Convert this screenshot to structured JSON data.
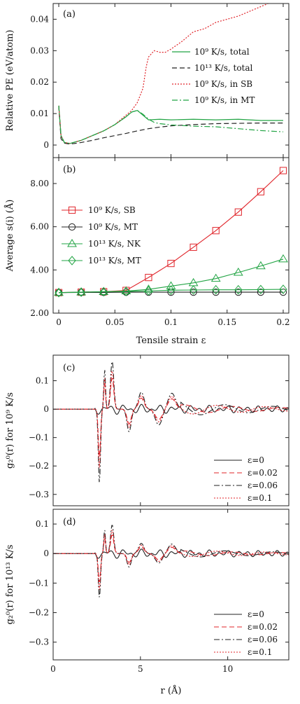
{
  "chart_data": [
    {
      "panel_label": "(a)",
      "type": "line",
      "ylabel": "Relative PE (eV/atom)",
      "xlim": [
        -0.005,
        0.205
      ],
      "ylim": [
        -0.004,
        0.045
      ],
      "yticks": [
        0,
        0.01,
        0.02,
        0.03,
        0.04
      ],
      "yticklabels": [
        "0",
        "0.01",
        "0.02",
        "0.03",
        "0.04"
      ],
      "legend_loc": "right",
      "series": [
        {
          "name": "10⁹ K/s, total",
          "color": "#22a444",
          "dash": "",
          "x": [
            0,
            0.002,
            0.005,
            0.01,
            0.02,
            0.03,
            0.04,
            0.05,
            0.06,
            0.065,
            0.07,
            0.075,
            0.08,
            0.09,
            0.1,
            0.12,
            0.14,
            0.16,
            0.18,
            0.2
          ],
          "y": [
            0.0125,
            0.003,
            0.0008,
            0.0005,
            0.0015,
            0.003,
            0.0045,
            0.0065,
            0.009,
            0.0105,
            0.011,
            0.0095,
            0.008,
            0.0082,
            0.008,
            0.0082,
            0.008,
            0.0082,
            0.0078,
            0.0078
          ]
        },
        {
          "name": "10¹³ K/s, total",
          "color": "#222222",
          "dash": "7,4",
          "x": [
            0,
            0.002,
            0.005,
            0.01,
            0.02,
            0.03,
            0.04,
            0.05,
            0.06,
            0.07,
            0.08,
            0.09,
            0.1,
            0.12,
            0.14,
            0.16,
            0.18,
            0.2
          ],
          "y": [
            0.0125,
            0.002,
            0.0006,
            0.0003,
            0.0008,
            0.0015,
            0.0023,
            0.003,
            0.0037,
            0.0045,
            0.0052,
            0.0057,
            0.0061,
            0.0065,
            0.0068,
            0.0069,
            0.007,
            0.007
          ]
        },
        {
          "name": "10⁹ K/s, in SB",
          "color": "#e0242a",
          "dash": "2,2",
          "x": [
            0,
            0.002,
            0.005,
            0.01,
            0.02,
            0.03,
            0.04,
            0.05,
            0.06,
            0.065,
            0.07,
            0.075,
            0.078,
            0.08,
            0.085,
            0.09,
            0.095,
            0.1,
            0.11,
            0.12,
            0.13,
            0.14,
            0.15,
            0.16,
            0.17,
            0.18,
            0.19
          ],
          "y": [
            0.0125,
            0.003,
            0.0008,
            0.0005,
            0.0015,
            0.003,
            0.0045,
            0.0065,
            0.0095,
            0.011,
            0.0135,
            0.018,
            0.025,
            0.028,
            0.03,
            0.0295,
            0.0295,
            0.0305,
            0.033,
            0.036,
            0.037,
            0.039,
            0.04,
            0.041,
            0.0425,
            0.044,
            0.0455
          ]
        },
        {
          "name": "10⁹ K/s, in MT",
          "color": "#22a444",
          "dash": "8,3,2,3",
          "x": [
            0,
            0.002,
            0.005,
            0.01,
            0.02,
            0.03,
            0.04,
            0.05,
            0.06,
            0.065,
            0.07,
            0.075,
            0.08,
            0.085,
            0.09,
            0.1,
            0.12,
            0.14,
            0.16,
            0.18,
            0.2
          ],
          "y": [
            0.0125,
            0.003,
            0.0008,
            0.0005,
            0.0015,
            0.003,
            0.0045,
            0.0065,
            0.009,
            0.0105,
            0.011,
            0.0098,
            0.0082,
            0.0072,
            0.0068,
            0.0064,
            0.006,
            0.0058,
            0.0052,
            0.0046,
            0.0042
          ]
        }
      ]
    },
    {
      "panel_label": "(b)",
      "type": "line",
      "xlabel": "Tensile strain ε",
      "ylabel": "Average s(i) (Å)",
      "xlim": [
        -0.005,
        0.205
      ],
      "ylim": [
        2.0,
        9.2
      ],
      "xticks": [
        0,
        0.05,
        0.1,
        0.15,
        0.2
      ],
      "xticklabels": [
        "0",
        "0.05",
        "0.1",
        "0.15",
        "0.2"
      ],
      "yticks": [
        2,
        4,
        6,
        8
      ],
      "yticklabels": [
        "2.00",
        "4.00",
        "6.00",
        "8.00"
      ],
      "legend_loc": "left",
      "series": [
        {
          "name": "10⁹ K/s, SB",
          "color": "#e0242a",
          "marker": "square",
          "x": [
            0,
            0.02,
            0.04,
            0.06,
            0.08,
            0.1,
            0.12,
            0.14,
            0.16,
            0.18,
            0.2
          ],
          "y": [
            2.95,
            2.97,
            2.99,
            3.05,
            3.65,
            4.3,
            5.05,
            5.82,
            6.68,
            7.62,
            8.6
          ]
        },
        {
          "name": "10⁹ K/s, MT",
          "color": "#222222",
          "marker": "circle",
          "x": [
            0,
            0.02,
            0.04,
            0.06,
            0.08,
            0.1,
            0.12,
            0.14,
            0.16,
            0.18,
            0.2
          ],
          "y": [
            2.95,
            2.96,
            2.96,
            2.97,
            2.97,
            2.97,
            2.97,
            2.97,
            2.97,
            2.97,
            2.97
          ]
        },
        {
          "name": "10¹³ K/s, NK",
          "color": "#22a444",
          "marker": "triangle",
          "x": [
            0,
            0.02,
            0.04,
            0.06,
            0.08,
            0.1,
            0.12,
            0.14,
            0.16,
            0.18,
            0.2
          ],
          "y": [
            2.95,
            2.97,
            2.99,
            3.02,
            3.1,
            3.25,
            3.4,
            3.6,
            3.88,
            4.18,
            4.5
          ]
        },
        {
          "name": "10¹³ K/s, MT",
          "color": "#22a444",
          "marker": "diamond",
          "x": [
            0,
            0.02,
            0.04,
            0.06,
            0.08,
            0.1,
            0.12,
            0.14,
            0.16,
            0.18,
            0.2
          ],
          "y": [
            2.95,
            2.97,
            2.99,
            3.0,
            3.03,
            3.06,
            3.07,
            3.08,
            3.08,
            3.09,
            3.1
          ]
        }
      ]
    },
    {
      "panel_label": "(c)",
      "type": "line",
      "ylabel": "g₂⁰(r) for 10⁹ K/s",
      "xlim": [
        0,
        13.5
      ],
      "ylim": [
        -0.34,
        0.19
      ],
      "yticks": [
        -0.3,
        -0.2,
        -0.1,
        0,
        0.1
      ],
      "yticklabels": [
        "−0.3",
        "−0.2",
        "−0.1",
        "0",
        "0.1"
      ],
      "legend_loc": "lower-right",
      "series": [
        {
          "name": "ε=0",
          "color": "#222222",
          "dash": "",
          "amp": 0.2
        },
        {
          "name": "ε=0.02",
          "color": "#e0242a",
          "dash": "7,4",
          "amp": 1.3
        },
        {
          "name": "ε=0.06",
          "color": "#222222",
          "dash": "8,3,2,3",
          "amp": 2.0
        },
        {
          "name": "ε=0.1",
          "color": "#e0242a",
          "dash": "2,2",
          "amp": 1.6
        }
      ]
    },
    {
      "panel_label": "(d)",
      "type": "line",
      "xlabel": "r (Å)",
      "ylabel": "g₂⁰(r) for 10¹³ K/s",
      "xlim": [
        0,
        13.5
      ],
      "ylim": [
        -0.36,
        0.15
      ],
      "xticks": [
        0,
        5,
        10
      ],
      "xticklabels": [
        "0",
        "5",
        "10"
      ],
      "yticks": [
        -0.3,
        -0.2,
        -0.1,
        0,
        0.1
      ],
      "yticklabels": [
        "−0.3",
        "−0.2",
        "−0.1",
        "0",
        "0.1"
      ],
      "legend_loc": "lower-right",
      "series": [
        {
          "name": "ε=0",
          "color": "#222222",
          "dash": "",
          "amp": 0.18
        },
        {
          "name": "ε=0.02",
          "color": "#e0242a",
          "dash": "7,4",
          "amp": 0.75
        },
        {
          "name": "ε=0.06",
          "color": "#222222",
          "dash": "8,3,2,3",
          "amp": 1.15
        },
        {
          "name": "ε=0.1",
          "color": "#e0242a",
          "dash": "2,2",
          "amp": 0.95
        }
      ]
    }
  ]
}
